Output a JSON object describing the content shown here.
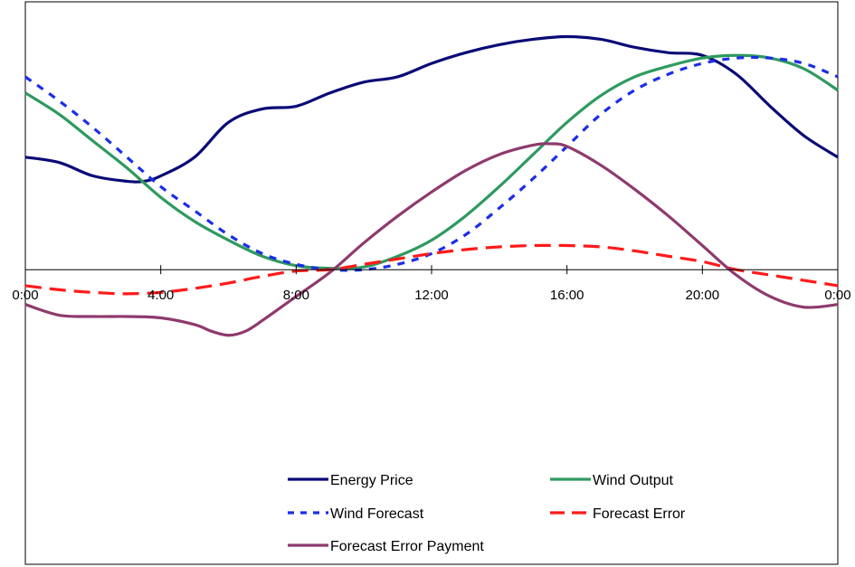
{
  "chart_data": {
    "type": "line",
    "title": "",
    "xlabel": "",
    "ylabel": "",
    "x_unit": "hours",
    "xlim": [
      0,
      24
    ],
    "ylim": [
      -1.1,
      1.0
    ],
    "x_ticks": [
      0,
      4,
      8,
      12,
      16,
      20,
      24
    ],
    "x_tick_labels": [
      "0:00",
      "4:00",
      "8:00",
      "12:00",
      "16:00",
      "20:00",
      "0:00"
    ],
    "grid": false,
    "legend_position": "bottom",
    "series": [
      {
        "name": "Energy Price",
        "color": "#0a0a78",
        "dash": "solid",
        "x": [
          0,
          1,
          2,
          3,
          3.5,
          4,
          5,
          6,
          7,
          8,
          9,
          10,
          11,
          12,
          13,
          14,
          15,
          16,
          17,
          18,
          19,
          20,
          21,
          22,
          23,
          24
        ],
        "y": [
          0.42,
          0.4,
          0.35,
          0.33,
          0.33,
          0.35,
          0.42,
          0.55,
          0.6,
          0.61,
          0.66,
          0.7,
          0.72,
          0.77,
          0.81,
          0.84,
          0.86,
          0.87,
          0.86,
          0.83,
          0.81,
          0.8,
          0.73,
          0.61,
          0.5,
          0.42
        ]
      },
      {
        "name": "Wind Output",
        "color": "#2e9a5e",
        "dash": "solid",
        "x": [
          0,
          1,
          2,
          3,
          4,
          5,
          6,
          7,
          8,
          9,
          10,
          11,
          12,
          13,
          14,
          15,
          16,
          17,
          18,
          19,
          20,
          21,
          22,
          23,
          24
        ],
        "y": [
          0.66,
          0.58,
          0.48,
          0.38,
          0.27,
          0.18,
          0.11,
          0.05,
          0.015,
          0.005,
          0.01,
          0.05,
          0.11,
          0.2,
          0.31,
          0.43,
          0.55,
          0.65,
          0.72,
          0.76,
          0.79,
          0.8,
          0.79,
          0.75,
          0.67
        ]
      },
      {
        "name": "Wind Forecast",
        "color": "#1a2ee6",
        "dash": "dotted",
        "x": [
          0,
          1,
          2,
          3,
          4,
          5,
          6,
          7,
          8,
          9,
          10,
          11,
          12,
          13,
          14,
          15,
          16,
          17,
          18,
          19,
          20,
          21,
          22,
          23,
          24
        ],
        "y": [
          0.72,
          0.63,
          0.53,
          0.42,
          0.31,
          0.22,
          0.13,
          0.06,
          0.02,
          0.0,
          0.0,
          0.02,
          0.06,
          0.13,
          0.23,
          0.34,
          0.46,
          0.58,
          0.67,
          0.73,
          0.77,
          0.79,
          0.79,
          0.77,
          0.72
        ]
      },
      {
        "name": "Forecast Error",
        "color": "#ff1a1a",
        "dash": "dashed",
        "x": [
          0,
          1,
          2,
          3,
          4,
          5,
          6,
          7,
          8,
          9,
          10,
          11,
          12,
          13,
          14,
          15,
          16,
          17,
          18,
          19,
          20,
          21,
          22,
          23,
          24
        ],
        "y": [
          -0.06,
          -0.075,
          -0.085,
          -0.09,
          -0.085,
          -0.07,
          -0.05,
          -0.025,
          -0.005,
          0.0,
          0.02,
          0.04,
          0.06,
          0.075,
          0.085,
          0.09,
          0.09,
          0.085,
          0.07,
          0.05,
          0.03,
          0.0,
          -0.02,
          -0.04,
          -0.06
        ]
      },
      {
        "name": "Forecast Error Payment",
        "color": "#8e3a6e",
        "dash": "solid",
        "x": [
          0,
          1,
          2,
          3,
          4,
          5,
          5.5,
          6,
          6.5,
          7,
          8,
          9,
          10,
          11,
          12,
          13,
          14,
          15,
          15.5,
          16,
          17,
          18,
          19,
          20,
          21,
          22,
          23,
          24
        ],
        "y": [
          -0.13,
          -0.17,
          -0.175,
          -0.175,
          -0.18,
          -0.205,
          -0.23,
          -0.245,
          -0.23,
          -0.19,
          -0.1,
          -0.01,
          0.1,
          0.2,
          0.29,
          0.37,
          0.43,
          0.465,
          0.47,
          0.46,
          0.39,
          0.3,
          0.2,
          0.09,
          -0.02,
          -0.1,
          -0.14,
          -0.13
        ]
      }
    ]
  }
}
